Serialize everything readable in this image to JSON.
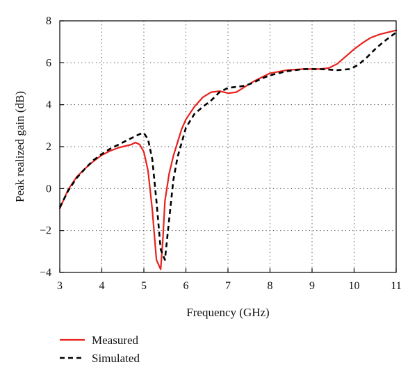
{
  "chart_data": {
    "type": "line",
    "title": "",
    "xlabel": "Frequency (GHz)",
    "ylabel": "Peak realized gain (dB)",
    "xlim": [
      3,
      11
    ],
    "ylim": [
      -4,
      8
    ],
    "xticks": [
      3,
      4,
      5,
      6,
      7,
      8,
      9,
      10,
      11
    ],
    "yticks": [
      -4,
      -2,
      0,
      2,
      4,
      6,
      8
    ],
    "grid": "dotted",
    "legend_position": "below-left",
    "series": [
      {
        "name": "Measured",
        "color": "#e8211d",
        "style": "solid",
        "points": [
          [
            3.0,
            -0.95
          ],
          [
            3.2,
            -0.05
          ],
          [
            3.4,
            0.55
          ],
          [
            3.6,
            0.95
          ],
          [
            3.8,
            1.3
          ],
          [
            4.0,
            1.6
          ],
          [
            4.2,
            1.8
          ],
          [
            4.4,
            1.95
          ],
          [
            4.6,
            2.05
          ],
          [
            4.7,
            2.1
          ],
          [
            4.8,
            2.2
          ],
          [
            4.9,
            2.1
          ],
          [
            5.0,
            1.75
          ],
          [
            5.1,
            0.85
          ],
          [
            5.2,
            -1.0
          ],
          [
            5.3,
            -3.4
          ],
          [
            5.4,
            -3.85
          ],
          [
            5.45,
            -2.5
          ],
          [
            5.5,
            -0.6
          ],
          [
            5.6,
            0.7
          ],
          [
            5.7,
            1.55
          ],
          [
            5.8,
            2.2
          ],
          [
            5.9,
            2.85
          ],
          [
            6.0,
            3.3
          ],
          [
            6.2,
            3.9
          ],
          [
            6.4,
            4.35
          ],
          [
            6.6,
            4.6
          ],
          [
            6.8,
            4.65
          ],
          [
            7.0,
            4.55
          ],
          [
            7.2,
            4.6
          ],
          [
            7.4,
            4.85
          ],
          [
            7.6,
            5.1
          ],
          [
            7.8,
            5.3
          ],
          [
            8.0,
            5.5
          ],
          [
            8.4,
            5.65
          ],
          [
            8.8,
            5.7
          ],
          [
            9.2,
            5.7
          ],
          [
            9.4,
            5.75
          ],
          [
            9.6,
            5.95
          ],
          [
            9.8,
            6.3
          ],
          [
            10.0,
            6.65
          ],
          [
            10.2,
            6.95
          ],
          [
            10.4,
            7.2
          ],
          [
            10.6,
            7.35
          ],
          [
            10.8,
            7.45
          ],
          [
            11.0,
            7.55
          ]
        ]
      },
      {
        "name": "Simulated",
        "color": "#000000",
        "style": "dashed",
        "points": [
          [
            3.0,
            -0.9
          ],
          [
            3.2,
            -0.1
          ],
          [
            3.4,
            0.5
          ],
          [
            3.6,
            0.95
          ],
          [
            3.8,
            1.35
          ],
          [
            4.0,
            1.65
          ],
          [
            4.2,
            1.9
          ],
          [
            4.4,
            2.1
          ],
          [
            4.6,
            2.3
          ],
          [
            4.8,
            2.5
          ],
          [
            4.9,
            2.6
          ],
          [
            5.0,
            2.65
          ],
          [
            5.1,
            2.35
          ],
          [
            5.2,
            1.4
          ],
          [
            5.3,
            -0.6
          ],
          [
            5.4,
            -2.9
          ],
          [
            5.5,
            -3.4
          ],
          [
            5.6,
            -1.5
          ],
          [
            5.7,
            0.4
          ],
          [
            5.8,
            1.5
          ],
          [
            5.9,
            2.2
          ],
          [
            6.0,
            2.9
          ],
          [
            6.2,
            3.55
          ],
          [
            6.4,
            3.9
          ],
          [
            6.6,
            4.2
          ],
          [
            6.8,
            4.6
          ],
          [
            7.0,
            4.8
          ],
          [
            7.2,
            4.85
          ],
          [
            7.4,
            4.9
          ],
          [
            7.6,
            5.05
          ],
          [
            7.8,
            5.25
          ],
          [
            8.0,
            5.4
          ],
          [
            8.4,
            5.6
          ],
          [
            8.8,
            5.7
          ],
          [
            9.2,
            5.7
          ],
          [
            9.6,
            5.65
          ],
          [
            9.9,
            5.7
          ],
          [
            10.1,
            5.9
          ],
          [
            10.3,
            6.25
          ],
          [
            10.5,
            6.65
          ],
          [
            10.7,
            7.0
          ],
          [
            10.9,
            7.3
          ],
          [
            11.0,
            7.45
          ]
        ]
      }
    ]
  }
}
